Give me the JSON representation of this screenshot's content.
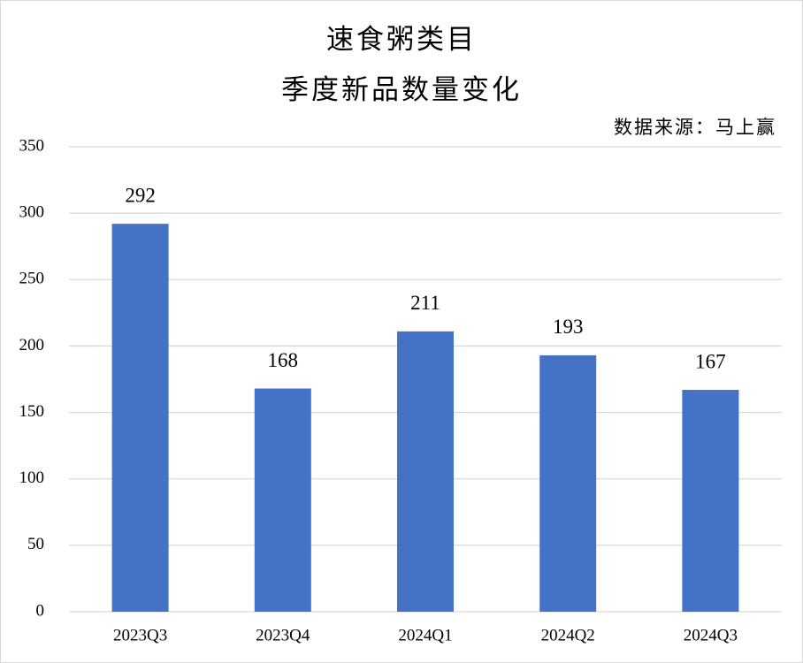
{
  "chart_data": {
    "type": "bar",
    "title": [
      "速食粥类目",
      "季度新品数量变化"
    ],
    "annotations": [
      "数据来源：马上赢"
    ],
    "categories": [
      "2023Q3",
      "2023Q4",
      "2024Q1",
      "2024Q2",
      "2024Q3"
    ],
    "values": [
      292,
      168,
      211,
      193,
      167
    ],
    "color": "#4472c4",
    "ylim": [
      0,
      350
    ],
    "yticks": [
      0,
      50,
      100,
      150,
      200,
      250,
      300,
      350
    ],
    "grid": true
  }
}
